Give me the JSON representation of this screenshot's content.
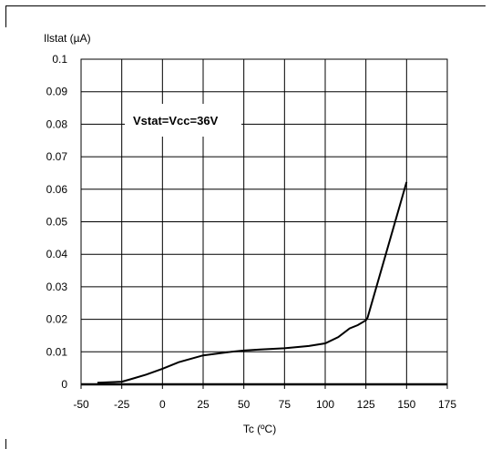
{
  "chart_data": {
    "type": "line",
    "ylabel": "Ilstat (µA)",
    "xlabel": "Tc (ºC)",
    "annotation": "Vstat=Vcc=36V",
    "xlim": [
      -50,
      175
    ],
    "ylim": [
      0,
      0.1
    ],
    "x_ticks": [
      "-50",
      "-25",
      "0",
      "25",
      "50",
      "75",
      "100",
      "125",
      "150",
      "175"
    ],
    "y_ticks": [
      "0",
      "0.01",
      "0.02",
      "0.03",
      "0.04",
      "0.05",
      "0.06",
      "0.07",
      "0.08",
      "0.09",
      "0.1"
    ],
    "grid": true,
    "series": [
      {
        "x": [
          -40,
          -25,
          -20,
          -10,
          0,
          10,
          25,
          40,
          50,
          60,
          75,
          90,
          100,
          108,
          115,
          120,
          125,
          126,
          150
        ],
        "y": [
          0.0005,
          0.0008,
          0.0015,
          0.003,
          0.0048,
          0.0068,
          0.0089,
          0.0099,
          0.0104,
          0.0107,
          0.0111,
          0.0118,
          0.0126,
          0.0145,
          0.0172,
          0.0182,
          0.0197,
          0.0205,
          0.0622
        ]
      }
    ]
  }
}
